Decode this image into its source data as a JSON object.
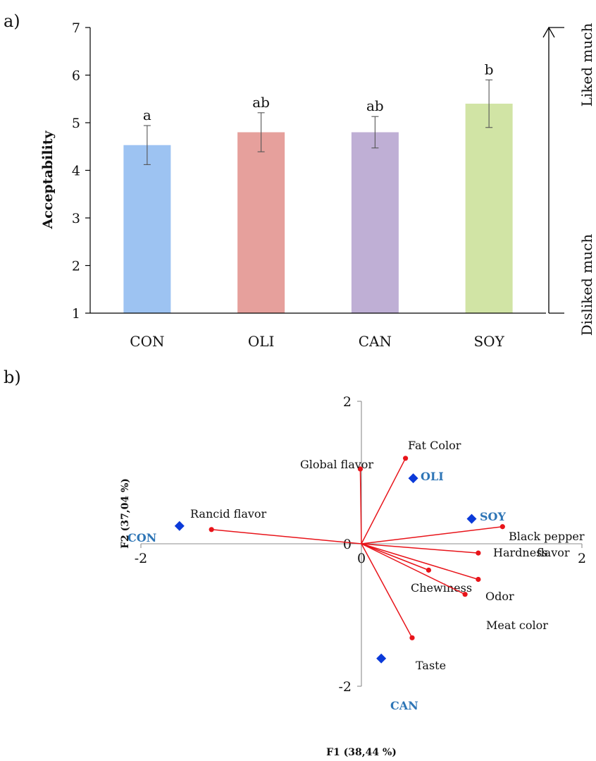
{
  "chart_data": [
    {
      "type": "bar",
      "panel_label": "a)",
      "ylabel": "Acceptability",
      "ylim": [
        1,
        7
      ],
      "yticks": [
        1,
        2,
        3,
        4,
        5,
        6,
        7
      ],
      "categories": [
        "CON",
        "OLI",
        "CAN",
        "SOY"
      ],
      "values": [
        4.53,
        4.8,
        4.8,
        5.4
      ],
      "errors": [
        0.41,
        0.41,
        0.33,
        0.5
      ],
      "significance": [
        "a",
        "ab",
        "ab",
        "b"
      ],
      "colors": [
        "#9dc3f2",
        "#e6a09c",
        "#bfafd5",
        "#d1e4a5"
      ],
      "scale_labels": {
        "top": "Liked much",
        "bottom": "Disliked much"
      }
    },
    {
      "type": "scatter",
      "panel_label": "b)",
      "xlabel": "F1 (38,44 %)",
      "ylabel": "F2 (37,04 %)",
      "xlim": [
        -2,
        2
      ],
      "ylim": [
        -2,
        2
      ],
      "xtick_labels": [
        "-2",
        "0",
        "2"
      ],
      "ytick_labels": [
        "2",
        "0",
        "-2"
      ],
      "variables": [
        {
          "name": "Fat Color",
          "x": 0.4,
          "y": 1.2
        },
        {
          "name": "Global flavor",
          "x": -0.01,
          "y": 1.05
        },
        {
          "name": "Rancid flavor",
          "x": -1.36,
          "y": 0.2
        },
        {
          "name": "Black pepper flavor",
          "x": 1.28,
          "y": 0.24
        },
        {
          "name": "Hardness",
          "x": 1.06,
          "y": -0.13
        },
        {
          "name": "Chewiness",
          "x": 0.61,
          "y": -0.37
        },
        {
          "name": "Odor",
          "x": 1.06,
          "y": -0.5
        },
        {
          "name": "Meat color",
          "x": 0.94,
          "y": -0.71
        },
        {
          "name": "Taste",
          "x": 0.46,
          "y": -1.32
        }
      ],
      "observations": [
        {
          "name": "OLI",
          "x": 0.47,
          "y": 0.92
        },
        {
          "name": "SOY",
          "x": 1.0,
          "y": 0.35
        },
        {
          "name": "CON",
          "x": -1.65,
          "y": 0.25
        },
        {
          "name": "CAN",
          "x": 0.18,
          "y": -1.61
        }
      ],
      "colors": {
        "variables": "#e8141a",
        "observations": "#0b3ad9",
        "observation_labels": "#2e75b6"
      }
    }
  ]
}
